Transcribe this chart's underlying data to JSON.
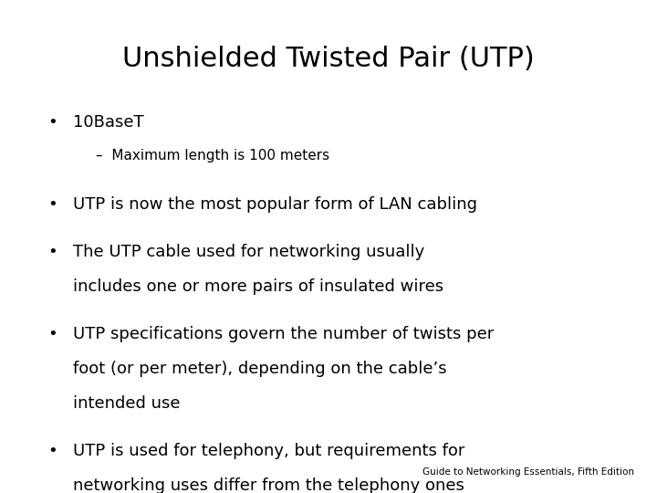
{
  "title": "Unshielded Twisted Pair (UTP)",
  "background_color": "#ffffff",
  "text_color": "#000000",
  "title_fontsize": 22,
  "body_fontsize": 13,
  "sub_fontsize": 11,
  "footer_fontsize": 7.5,
  "bullet1": "10BaseT",
  "sub_bullet1": "–  Maximum length is 100 meters",
  "bullet2": "UTP is now the most popular form of LAN cabling",
  "bullet3_line1": "The UTP cable used for networking usually",
  "bullet3_line2": "includes one or more pairs of insulated wires",
  "bullet4_line1": "UTP specifications govern the number of twists per",
  "bullet4_line2": "foot (or per meter), depending on the cable’s",
  "bullet4_line3": "intended use",
  "bullet5_line1": "UTP is used for telephony, but requirements for",
  "bullet5_line2": "networking uses differ from the telephony ones",
  "footer": "Guide to Networking Essentials, Fifth Edition"
}
